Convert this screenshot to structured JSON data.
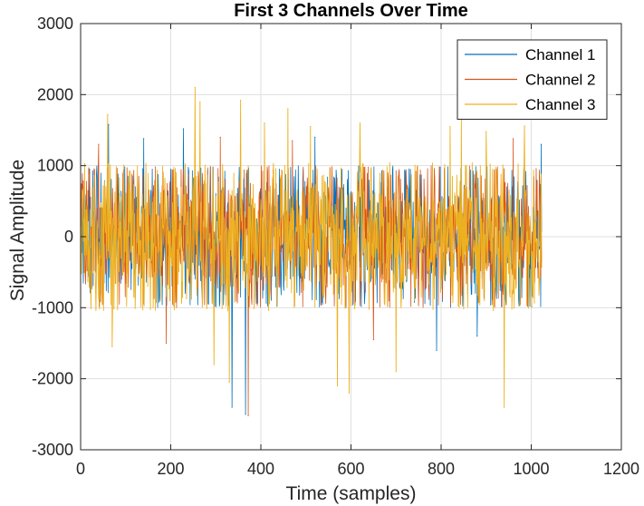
{
  "chart_data": {
    "type": "line",
    "title": "First 3 Channels Over Time",
    "xlabel": "Time (samples)",
    "ylabel": "Signal Amplitude",
    "xlim": [
      0,
      1200
    ],
    "ylim": [
      -3000,
      3000
    ],
    "xticks": [
      0,
      200,
      400,
      600,
      800,
      1000,
      1200
    ],
    "yticks": [
      -3000,
      -2000,
      -1000,
      0,
      1000,
      2000,
      3000
    ],
    "grid": true,
    "legend_position": "top-right",
    "n_samples": 1024,
    "series": [
      {
        "name": "Channel 1",
        "color": "#0072BD",
        "typical_envelope": [
          -1000,
          1000
        ],
        "peaks": [
          {
            "x": 62,
            "y": 1580
          },
          {
            "x": 140,
            "y": 1380
          },
          {
            "x": 228,
            "y": 1520
          },
          {
            "x": 336,
            "y": -2400
          },
          {
            "x": 366,
            "y": -2500
          },
          {
            "x": 520,
            "y": 1400
          },
          {
            "x": 790,
            "y": -1600
          },
          {
            "x": 880,
            "y": -1400
          },
          {
            "x": 1022,
            "y": 1300
          }
        ]
      },
      {
        "name": "Channel 2",
        "color": "#D95319",
        "typical_envelope": [
          -1000,
          1000
        ],
        "peaks": [
          {
            "x": 40,
            "y": 1300
          },
          {
            "x": 190,
            "y": -1500
          },
          {
            "x": 310,
            "y": 1400
          },
          {
            "x": 372,
            "y": -2520
          },
          {
            "x": 470,
            "y": 1350
          },
          {
            "x": 650,
            "y": -1450
          },
          {
            "x": 960,
            "y": 1380
          }
        ]
      },
      {
        "name": "Channel 3",
        "color": "#EDB120",
        "typical_envelope": [
          -1050,
          1050
        ],
        "peaks": [
          {
            "x": 60,
            "y": 1720
          },
          {
            "x": 70,
            "y": -1550
          },
          {
            "x": 254,
            "y": 2100
          },
          {
            "x": 265,
            "y": 1900
          },
          {
            "x": 296,
            "y": -1800
          },
          {
            "x": 330,
            "y": -2050
          },
          {
            "x": 355,
            "y": 1920
          },
          {
            "x": 408,
            "y": 1600
          },
          {
            "x": 460,
            "y": 1800
          },
          {
            "x": 510,
            "y": 1550
          },
          {
            "x": 570,
            "y": -2100
          },
          {
            "x": 596,
            "y": -2200
          },
          {
            "x": 620,
            "y": 1600
          },
          {
            "x": 700,
            "y": -1900
          },
          {
            "x": 820,
            "y": 1550
          },
          {
            "x": 845,
            "y": 1700
          },
          {
            "x": 900,
            "y": 1480
          },
          {
            "x": 940,
            "y": -2400
          },
          {
            "x": 985,
            "y": 1560
          }
        ]
      }
    ]
  }
}
